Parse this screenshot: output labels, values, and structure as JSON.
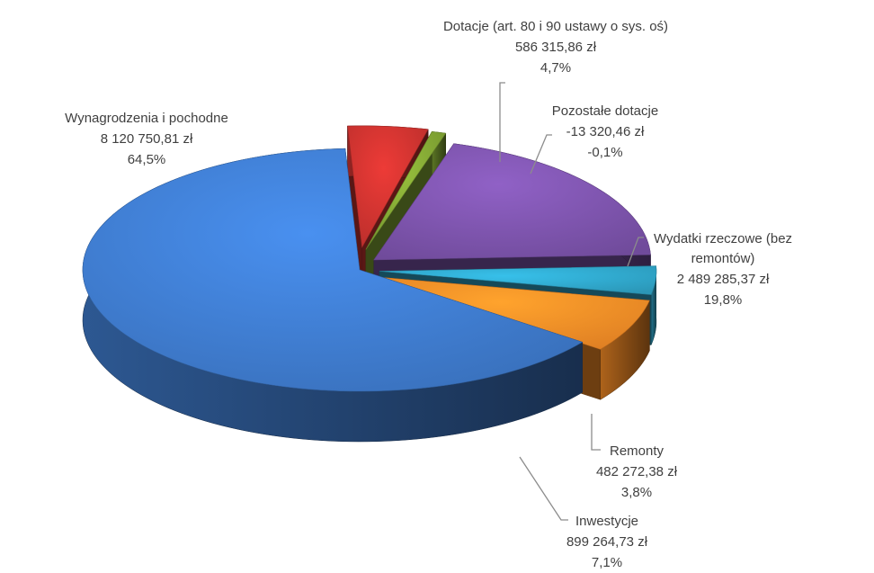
{
  "chart_data": {
    "type": "pie",
    "title": "",
    "three_d": true,
    "exploded": true,
    "slices": [
      {
        "label": "Wynagrodzenia i pochodne",
        "value_text": "8 120 750,81 zł",
        "value": 8120750.81,
        "percent_text": "64,5%",
        "percent": 64.5,
        "color": "#3E7ACB"
      },
      {
        "label": "Dotacje (art. 80 i 90 ustawy o sys. oś)",
        "value_text": "586 315,86 zł",
        "value": 586315.86,
        "percent_text": "4,7%",
        "percent": 4.7,
        "color": "#C9322F"
      },
      {
        "label": "Pozostałe dotacje",
        "value_text": "-13 320,46 zł",
        "value": -13320.46,
        "percent_text": "-0,1%",
        "percent": -0.1,
        "color": "#7FA233"
      },
      {
        "label": "Wydatki rzeczowe (bez remontów)",
        "value_text": "2 489 285,37 zł",
        "value": 2489285.37,
        "percent_text": "19,8%",
        "percent": 19.8,
        "color": "#7A52A8"
      },
      {
        "label": "Remonty",
        "value_text": "482 272,38 zł",
        "value": 482272.38,
        "percent_text": "3,8%",
        "percent": 3.8,
        "color": "#2FA3C6"
      },
      {
        "label": "Inwestycje",
        "value_text": "899 264,73 zł",
        "value": 899264.73,
        "percent_text": "7,1%",
        "percent": 7.1,
        "color": "#F28A26"
      }
    ]
  }
}
